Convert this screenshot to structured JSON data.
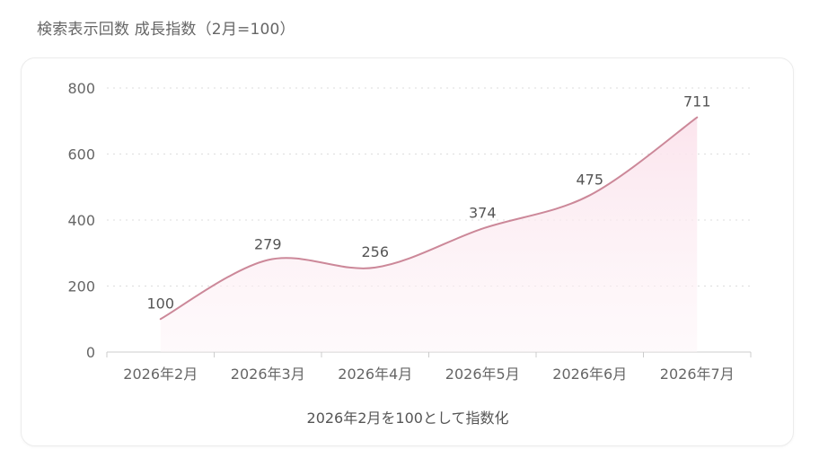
{
  "page": {
    "title": "検索表示回数 成長指数（2月=100）"
  },
  "chart_data": {
    "type": "area",
    "categories": [
      "2026年2月",
      "2026年3月",
      "2026年4月",
      "2026年5月",
      "2026年6月",
      "2026年7月"
    ],
    "series": [
      {
        "values": [
          100,
          279,
          256,
          374,
          475,
          711
        ]
      }
    ],
    "data_labels": [
      "100",
      "279",
      "256",
      "374",
      "475",
      "711"
    ],
    "xlabel": "2026年2月を100として指数化",
    "ylabel": "",
    "ylim": [
      0,
      800
    ],
    "yticks": [
      0,
      200,
      400,
      600,
      800
    ],
    "ytick_labels": [
      "0",
      "200",
      "400",
      "600",
      "800"
    ],
    "grid": true,
    "legend": "none",
    "colors": {
      "line": "#cc8899",
      "fill": "#fbe6ee",
      "grid": "#dddddd",
      "axis": "#cccccc"
    }
  }
}
